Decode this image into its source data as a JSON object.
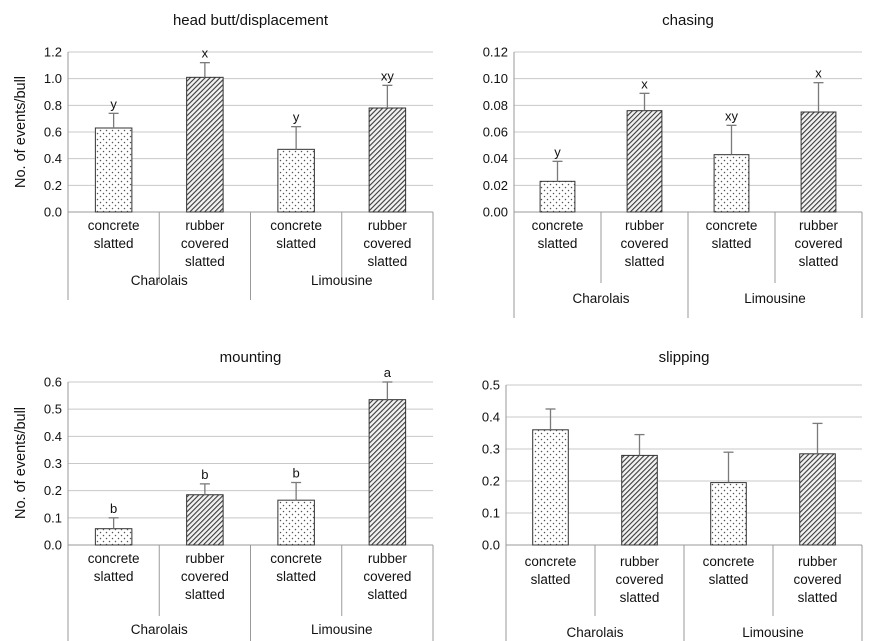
{
  "chart_data": [
    {
      "type": "bar",
      "title": "head butt/displacement",
      "ylabel": "No. of events/bull",
      "ylim": [
        0,
        1.2
      ],
      "yticks": [
        "0.0",
        "0.2",
        "0.4",
        "0.6",
        "0.8",
        "1.0",
        "1.2"
      ],
      "grid": true,
      "categories": [
        "concrete slatted",
        "rubber covered slatted",
        "concrete slatted",
        "rubber covered slatted"
      ],
      "groups": [
        "Charolais",
        "Limousine"
      ],
      "values": [
        0.63,
        1.01,
        0.47,
        0.78
      ],
      "errors": [
        0.11,
        0.11,
        0.17,
        0.17
      ],
      "labels": [
        "y",
        "x",
        "y",
        "xy"
      ]
    },
    {
      "type": "bar",
      "title": "chasing",
      "ylabel": "",
      "ylim": [
        0,
        0.12
      ],
      "yticks": [
        "0.00",
        "0.02",
        "0.04",
        "0.06",
        "0.08",
        "0.10",
        "0.12"
      ],
      "grid": true,
      "categories": [
        "concrete slatted",
        "rubber covered slatted",
        "concrete slatted",
        "rubber covered slatted"
      ],
      "groups": [
        "Charolais",
        "Limousine"
      ],
      "values": [
        0.023,
        0.076,
        0.043,
        0.075
      ],
      "errors": [
        0.015,
        0.013,
        0.022,
        0.022
      ],
      "labels": [
        "y",
        "x",
        "xy",
        "x"
      ]
    },
    {
      "type": "bar",
      "title": "mounting",
      "ylabel": "No. of events/bull",
      "ylim": [
        0,
        0.6
      ],
      "yticks": [
        "0.0",
        "0.1",
        "0.2",
        "0.3",
        "0.4",
        "0.5",
        "0.6"
      ],
      "grid": true,
      "categories": [
        "concrete slatted",
        "rubber covered slatted",
        "concrete slatted",
        "rubber covered slatted"
      ],
      "groups": [
        "Charolais",
        "Limousine"
      ],
      "values": [
        0.06,
        0.185,
        0.165,
        0.535
      ],
      "errors": [
        0.04,
        0.04,
        0.065,
        0.065
      ],
      "labels": [
        "b",
        "b",
        "b",
        "a"
      ]
    },
    {
      "type": "bar",
      "title": "slipping",
      "ylabel": "",
      "ylim": [
        0,
        0.5
      ],
      "yticks": [
        "0.0",
        "0.1",
        "0.2",
        "0.3",
        "0.4",
        "0.5"
      ],
      "grid": true,
      "categories": [
        "concrete slatted",
        "rubber covered slatted",
        "concrete slatted",
        "rubber covered slatted"
      ],
      "groups": [
        "Charolais",
        "Limousine"
      ],
      "values": [
        0.36,
        0.28,
        0.195,
        0.285
      ],
      "errors": [
        0.065,
        0.065,
        0.095,
        0.095
      ],
      "labels": [
        "",
        "",
        "",
        ""
      ]
    }
  ]
}
